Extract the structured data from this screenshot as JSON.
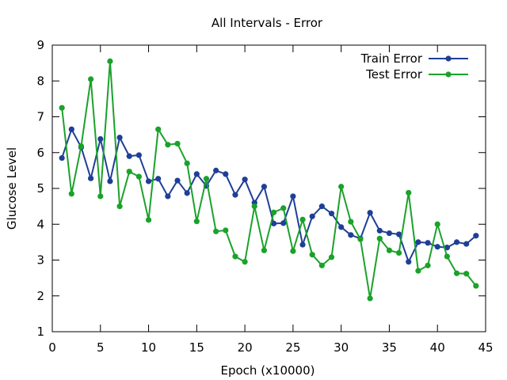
{
  "chart_data": {
    "type": "line",
    "title": "All Intervals - Error",
    "xlabel": "Epoch (x10000)",
    "ylabel": "Glucose Level",
    "xlim": [
      0,
      45
    ],
    "ylim": [
      1,
      9
    ],
    "x_ticks": [
      0,
      5,
      10,
      15,
      20,
      25,
      30,
      35,
      40,
      45
    ],
    "y_ticks": [
      1,
      2,
      3,
      4,
      5,
      6,
      7,
      8,
      9
    ],
    "grid": false,
    "legend_position": "top-right",
    "x": [
      1,
      2,
      3,
      4,
      5,
      6,
      7,
      8,
      9,
      10,
      11,
      12,
      13,
      14,
      15,
      16,
      17,
      18,
      19,
      20,
      21,
      22,
      23,
      24,
      25,
      26,
      27,
      28,
      29,
      30,
      31,
      32,
      33,
      34,
      35,
      36,
      37,
      38,
      39,
      40,
      41,
      42,
      43,
      44
    ],
    "series": [
      {
        "name": "Train Error",
        "color": "#1f3f96",
        "values": [
          5.85,
          6.65,
          6.15,
          5.28,
          6.38,
          5.2,
          6.42,
          5.9,
          5.93,
          5.2,
          5.27,
          4.78,
          5.22,
          4.87,
          5.4,
          5.07,
          5.5,
          5.4,
          4.82,
          5.25,
          4.6,
          5.05,
          4.02,
          4.03,
          4.78,
          3.43,
          4.22,
          4.5,
          4.3,
          3.92,
          3.7,
          3.6,
          4.32,
          3.82,
          3.75,
          3.72,
          2.95,
          3.5,
          3.48,
          3.37,
          3.35,
          3.5,
          3.45,
          3.68
        ]
      },
      {
        "name": "Test Error",
        "color": "#1aa22a",
        "values": [
          7.25,
          4.85,
          6.18,
          8.05,
          4.78,
          8.55,
          4.5,
          5.47,
          5.33,
          4.12,
          6.65,
          6.22,
          6.25,
          5.7,
          4.08,
          5.27,
          3.8,
          3.83,
          3.1,
          2.95,
          4.5,
          3.27,
          4.33,
          4.45,
          3.25,
          4.13,
          3.15,
          2.85,
          3.08,
          5.05,
          4.07,
          3.58,
          1.93,
          3.6,
          3.27,
          3.2,
          4.88,
          2.7,
          2.85,
          4.0,
          3.1,
          2.63,
          2.62,
          2.28
        ]
      }
    ]
  }
}
